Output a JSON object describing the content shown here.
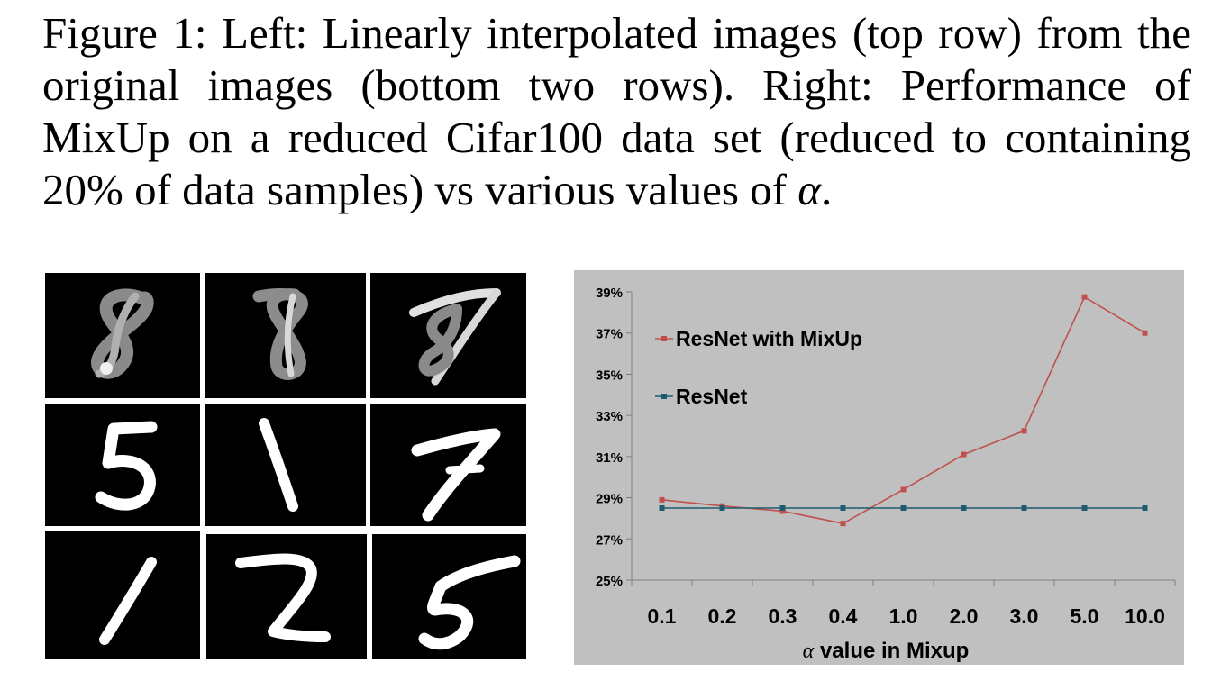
{
  "caption": {
    "prefix": "Figure 1: Left: Linearly interpolated images (top row) from the original images (bottom two rows). Right: Performance of MixUp on a reduced Cifar100 data set (reduced to containing 20% of data samples) vs various values of ",
    "symbol": "α",
    "suffix": "."
  },
  "mnist_grid": {
    "rows": [
      [
        "8",
        "8",
        "7"
      ],
      [
        "5",
        "1",
        "7"
      ],
      [
        "1",
        "2",
        "5"
      ]
    ]
  },
  "chart_data": {
    "type": "line",
    "categories": [
      "0.1",
      "0.2",
      "0.3",
      "0.4",
      "1.0",
      "2.0",
      "3.0",
      "5.0",
      "10.0"
    ],
    "series": [
      {
        "name": "ResNet with MixUp",
        "color": "#c0504d",
        "values": [
          28.9,
          28.6,
          28.35,
          27.75,
          29.4,
          31.1,
          32.25,
          38.75,
          37.0
        ]
      },
      {
        "name": "ResNet",
        "color": "#1f5b6e",
        "values": [
          28.5,
          28.5,
          28.5,
          28.5,
          28.5,
          28.5,
          28.5,
          28.5,
          28.5
        ]
      }
    ],
    "ylim": [
      25,
      39
    ],
    "yticks": [
      "25%",
      "27%",
      "29%",
      "31%",
      "33%",
      "35%",
      "37%",
      "39%"
    ],
    "xlabel": {
      "symbol": "α",
      "text": " value in Mixup"
    },
    "ylabel": "",
    "grid": false,
    "background": "#c0c0c0",
    "legend_position": "top-left"
  }
}
